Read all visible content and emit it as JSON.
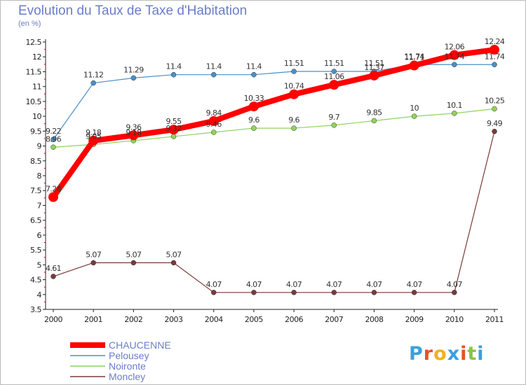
{
  "title": "Evolution du Taux de Taxe d'Habitation",
  "subtitle": "(en %)",
  "logo": {
    "letters": [
      "P",
      "r",
      "o",
      "x",
      "i",
      "t",
      "i"
    ],
    "colors": [
      "#3aa0e0",
      "#e8502a",
      "#f0b020",
      "#3aa0e0",
      "#e8502a",
      "#8bc34a",
      "#3aa0e0"
    ]
  },
  "chart_data": {
    "type": "line",
    "title": "Evolution du Taux de Taxe d'Habitation",
    "ylabel": "(en %)",
    "x": [
      "2000",
      "2001",
      "2002",
      "2003",
      "2004",
      "2005",
      "2006",
      "2007",
      "2008",
      "2009",
      "2010",
      "2011"
    ],
    "ylim": [
      3.5,
      12.5
    ],
    "yticks": [
      "3.5",
      "4",
      "4.5",
      "5",
      "5.5",
      "6",
      "6.5",
      "7",
      "7.5",
      "8",
      "8.5",
      "9",
      "9.5",
      "10",
      "10.5",
      "11",
      "11.5",
      "12",
      "12.5"
    ],
    "grid": false,
    "legend_position": "bottom-left",
    "series": [
      {
        "name": "CHAUCENNE",
        "color": "#ff0000",
        "values": [
          7.28,
          9.18,
          9.36,
          9.55,
          9.84,
          10.33,
          10.74,
          11.06,
          11.37,
          11.71,
          12.06,
          12.24
        ],
        "labels": [
          "7.28",
          "9.18",
          "9.36",
          "9.55",
          "9.84",
          "10.33",
          "10.74",
          "11.06",
          "11.37",
          "11.71",
          "12.06",
          "12.24"
        ]
      },
      {
        "name": "Pelousey",
        "color": "#4a90c8",
        "values": [
          9.22,
          11.12,
          11.29,
          11.4,
          11.4,
          11.4,
          11.51,
          11.51,
          11.51,
          11.74,
          11.74,
          11.74
        ],
        "labels": [
          "9.22",
          "11.12",
          "11.29",
          "11.4",
          "11.4",
          "11.4",
          "11.51",
          "11.51",
          "11.51",
          "11.74",
          "11.74",
          "11.74"
        ]
      },
      {
        "name": "Noironte",
        "color": "#8fd45a",
        "values": [
          8.96,
          9.05,
          9.18,
          9.32,
          9.46,
          9.6,
          9.6,
          9.7,
          9.85,
          10,
          10.1,
          10.25
        ],
        "labels": [
          "8.96",
          "9.05",
          "9.18",
          "9.32",
          "9.46",
          "9.6",
          "9.6",
          "9.7",
          "9.85",
          "10",
          "10.1",
          "10.25"
        ]
      },
      {
        "name": "Moncley",
        "color": "#7a3a3a",
        "values": [
          4.61,
          5.07,
          5.07,
          5.07,
          4.07,
          4.07,
          4.07,
          4.07,
          4.07,
          4.07,
          4.07,
          9.49
        ],
        "labels": [
          "4.61",
          "5.07",
          "5.07",
          "5.07",
          "4.07",
          "4.07",
          "4.07",
          "4.07",
          "4.07",
          "4.07",
          "4.07",
          "9.49"
        ]
      }
    ]
  }
}
